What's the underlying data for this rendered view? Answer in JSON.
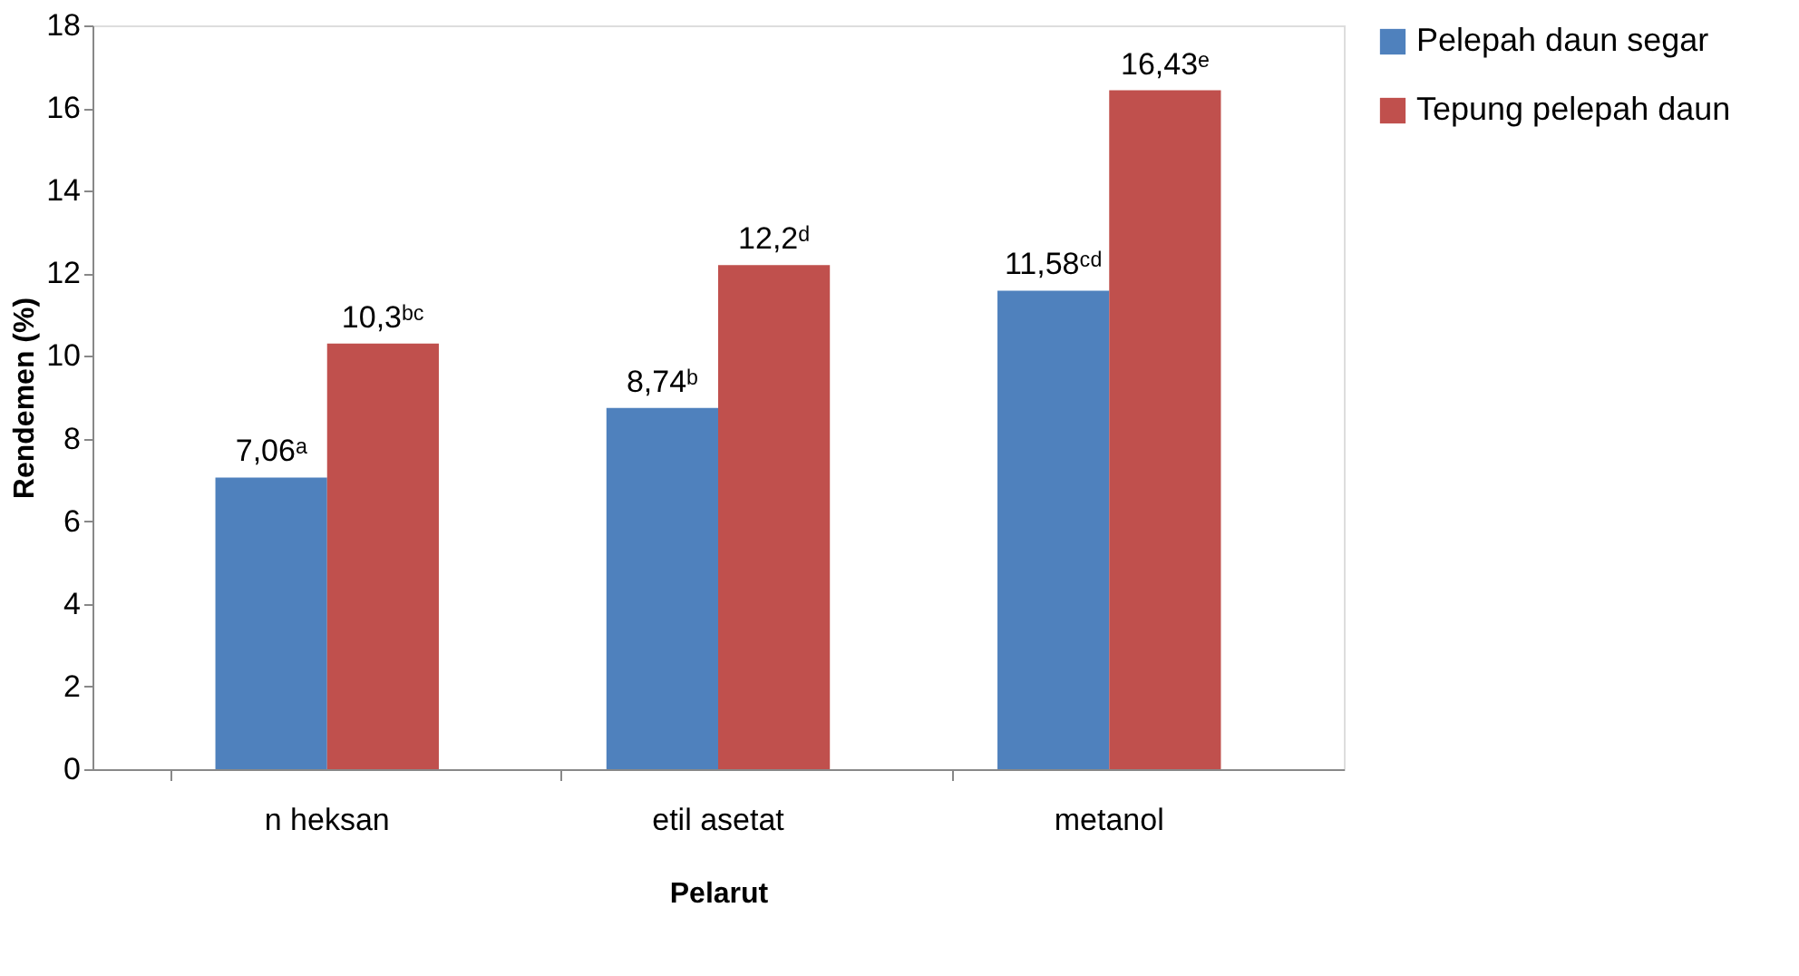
{
  "chart_data": {
    "type": "bar",
    "xlabel": "Pelarut",
    "ylabel": "Rendemen (%)",
    "categories": [
      "n heksan",
      "etil asetat",
      "metanol"
    ],
    "series": [
      {
        "name": "Pelepah daun segar",
        "color": "#4f81bd",
        "values": [
          7.06,
          8.74,
          11.58
        ],
        "value_labels": [
          "7,06ᵃ",
          "8,74ᵇ",
          "11,58ᶜᵈ"
        ]
      },
      {
        "name": "Tepung pelepah daun",
        "color": "#c0504d",
        "values": [
          10.3,
          12.2,
          16.43
        ],
        "value_labels": [
          "10,3ᵇᶜ",
          "12,2ᵈ",
          "16,43ᵉ"
        ]
      }
    ],
    "ylim": [
      0,
      18
    ],
    "yticks": [
      0,
      2,
      4,
      6,
      8,
      10,
      12,
      14,
      16,
      18
    ],
    "grid": false,
    "legend": "right"
  }
}
